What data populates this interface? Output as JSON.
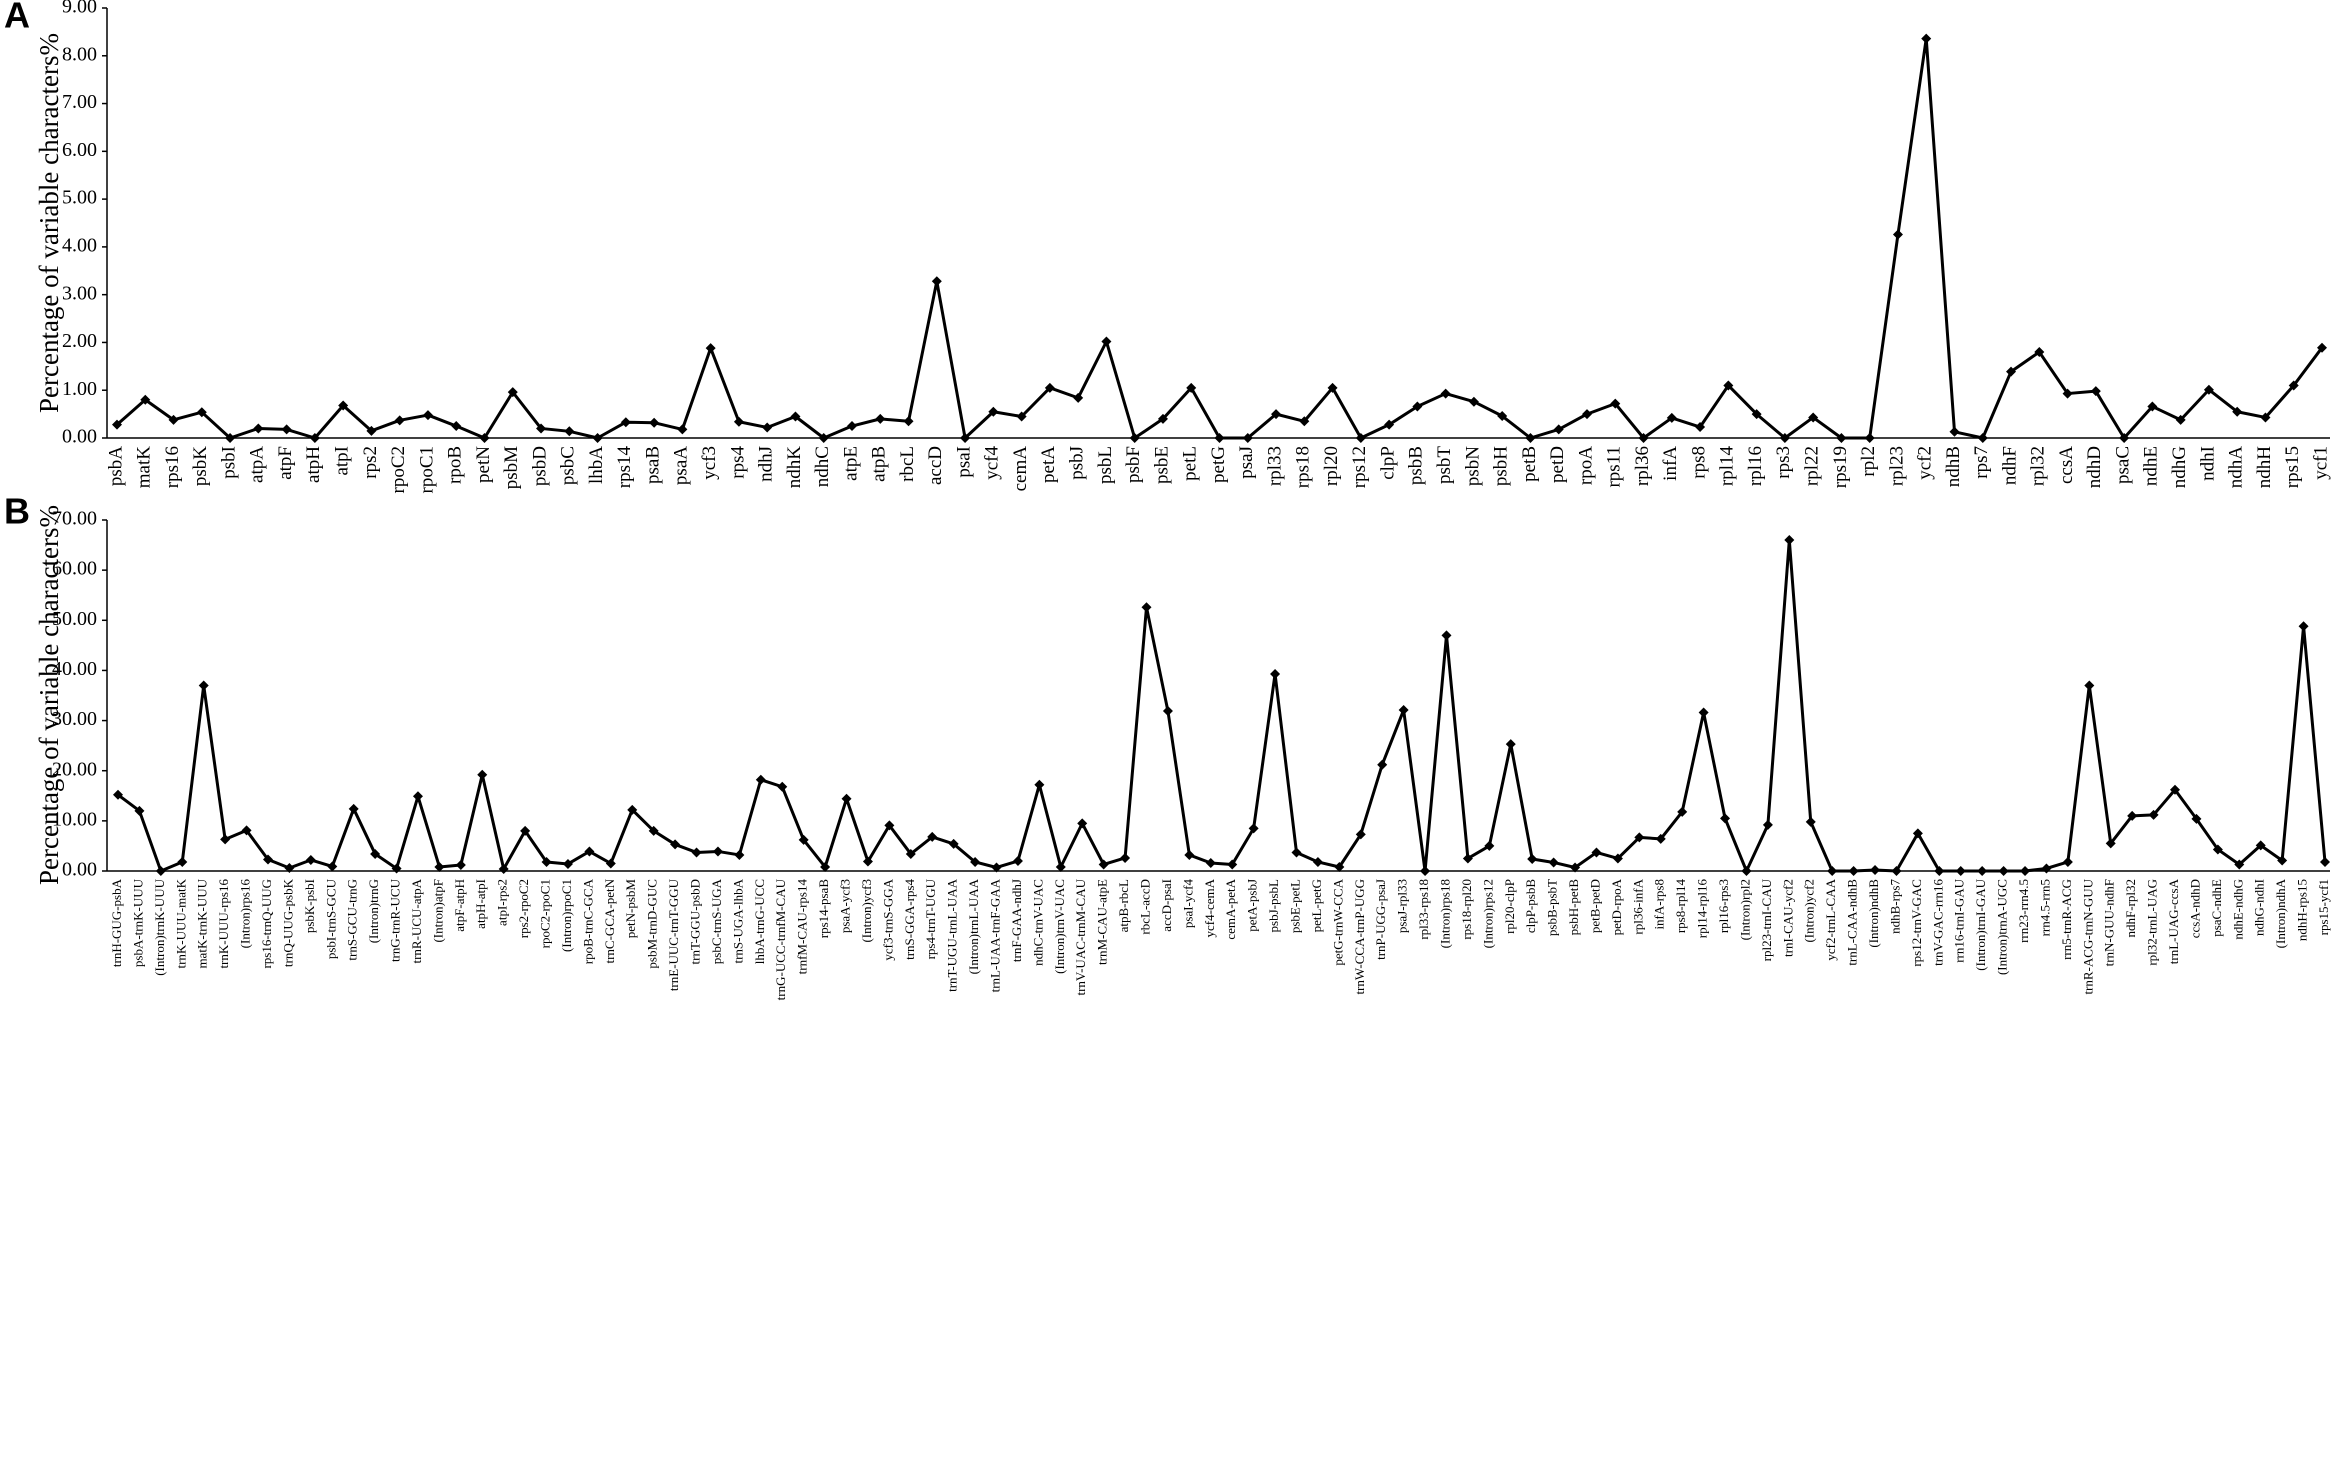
{
  "chart_data": [
    {
      "type": "line",
      "title": "A",
      "y_label": "Percentage of  variable characters%",
      "color": "#000000",
      "categories": [
        "psbA",
        "matK",
        "rps16",
        "psbK",
        "psbI",
        "atpA",
        "atpF",
        "atpH",
        "atpI",
        "rps2",
        "rpoC2",
        "rpoC1",
        "rpoB",
        "petN",
        "psbM",
        "psbD",
        "psbC",
        "lhbA",
        "rps14",
        "psaB",
        "psaA",
        "ycf3",
        "rps4",
        "ndhJ",
        "ndhK",
        "ndhC",
        "atpE",
        "atpB",
        "rbcL",
        "accD",
        "psaI",
        "ycf4",
        "cemA",
        "petA",
        "psbJ",
        "psbL",
        "psbF",
        "psbE",
        "petL",
        "petG",
        "psaJ",
        "rpl33",
        "rps18",
        "rpl20",
        "rps12",
        "clpP",
        "psbB",
        "psbT",
        "psbN",
        "psbH",
        "petB",
        "petD",
        "rpoA",
        "rps11",
        "rpl36",
        "infA",
        "rps8",
        "rpl14",
        "rpl16",
        "rps3",
        "rpl22",
        "rps19",
        "rpl2",
        "rpl23",
        "ycf2",
        "ndhB",
        "rps7",
        "ndhF",
        "rpl32",
        "ccsA",
        "ndhD",
        "psaC",
        "ndhE",
        "ndhG",
        "ndhI",
        "ndhA",
        "ndhH",
        "rps15",
        "ycf1"
      ],
      "values": [
        0.28,
        0.8,
        0.38,
        0.54,
        0,
        0.2,
        0.18,
        0,
        0.68,
        0.15,
        0.37,
        0.48,
        0.25,
        0,
        0.96,
        0.2,
        0.14,
        0,
        0.33,
        0.32,
        0.18,
        1.88,
        0.34,
        0.22,
        0.45,
        0,
        0.25,
        0.4,
        0.35,
        3.28,
        0,
        0.55,
        0.45,
        1.05,
        0.84,
        2.02,
        0,
        0.4,
        1.05,
        0,
        0,
        0.5,
        0.35,
        1.05,
        0,
        0.28,
        0.66,
        0.93,
        0.76,
        0.46,
        0,
        0.18,
        0.5,
        0.72,
        0,
        0.42,
        0.23,
        1.1,
        0.5,
        0,
        0.43,
        0,
        0,
        4.26,
        8.36,
        0.13,
        0,
        1.39,
        1.8,
        0.93,
        0.98,
        0,
        0.66,
        0.38,
        1.01,
        0.55,
        0.43,
        1.1,
        1.89
      ],
      "ylim": [
        0,
        9
      ],
      "yticks": [
        {
          "value": 0,
          "label": "0.00"
        },
        {
          "value": 1,
          "label": "1.00"
        },
        {
          "value": 2,
          "label": "2.00"
        },
        {
          "value": 3,
          "label": "3.00"
        },
        {
          "value": 4,
          "label": "4.00"
        },
        {
          "value": 5,
          "label": "5.00"
        },
        {
          "value": 6,
          "label": "6.00"
        },
        {
          "value": 7,
          "label": "7.00"
        },
        {
          "value": 8,
          "label": "8.00"
        },
        {
          "value": 9,
          "label": "9.00"
        }
      ]
    },
    {
      "type": "line",
      "title": "B",
      "y_label": "Percentage of  variable characters%",
      "color": "#000000",
      "categories": [
        "trnH-GUG-psbA",
        "psbA-trnK-UUU",
        "(Intron)trnK-UUU",
        "trnK-UUU-matK",
        "matK-trnK-UUU",
        "trnK-UUU-rps16",
        "(Intron)rps16",
        "rps16-trnQ-UUG",
        "trnQ-UUG-psbK",
        "psbK-psbI",
        "psbI-trnS-GCU",
        "trnS-GCU-trnG",
        "(Intron)trnG",
        "trnG-trnR-UCU",
        "trnR-UCU-atpA",
        "(Intron)atpF",
        "atpF-atpH",
        "atpH-atpI",
        "atpI-rps2",
        "rps2-rpoC2",
        "rpoC2-rpoC1",
        "(Intron)rpoC1",
        "rpoB-trnC-GCA",
        "trnC-GCA-petN",
        "petN-psbM",
        "psbM-trnD-GUC",
        "trnE-UUC-trnT-GGU",
        "trnT-GGU-psbD",
        "psbC-trnS-UGA",
        "trnS-UGA-lhbA",
        "lhbA-trnG-UCC",
        "trnG-UCC-trnfM-CAU",
        "trnfM-CAU-rps14",
        "rps14-psaB",
        "psaA-ycf3",
        "(Intron)ycf3",
        "ycf3-trnS-GGA",
        "trnS-GGA-rps4",
        "rps4-trnT-UGU",
        "trnT-UGU-trnL-UAA",
        "(Intron)trnL-UAA",
        "trnL-UAA-trnF-GAA",
        "trnF-GAA-ndhJ",
        "ndhC-trnV-UAC",
        "(Intron)trnV-UAC",
        "trnV-UAC-trnM-CAU",
        "trnM-CAU-atpE",
        "atpB-rbcL",
        "rbcL-accD",
        "accD-psaI",
        "psaI-ycf4",
        "ycf4-cemA",
        "cemA-petA",
        "petA-psbJ",
        "psbJ-psbL",
        "psbE-petL",
        "petL-petG",
        "petG-trnW-CCA",
        "trnW-CCA-trnP-UGG",
        "trnP-UGG-psaJ",
        "psaJ-rpl33",
        "rpl33-rps18",
        "(Intron)rps18",
        "rps18-rpl20",
        "(Intron)rps12",
        "rpl20-clpP",
        "clpP-psbB",
        "psbB-psbT",
        "psbH-petB",
        "petB-petD",
        "petD-rpoA",
        "rpl36-infA",
        "infA-rps8",
        "rps8-rpl14",
        "rpl14-rpl16",
        "rpl16-rps3",
        "(Intron)rpl2",
        "rpl23-trnI-CAU",
        "trnI-CAU-ycf2",
        "(Intron)ycf2",
        "ycf2-trnL-CAA",
        "trnL-CAA-ndhB",
        "(Intron)ndhB",
        "ndhB-rps7",
        "rps12-trnV-GAC",
        "trnV-GAC-rrn16",
        "rrn16-trnI-GAU",
        "(Intron)trnI-GAU",
        "(Intron)trnA-UGC",
        "rrn23-rrn4.5",
        "rrn4.5-rrn5",
        "rrn5-trnR-ACG",
        "trnR-ACG-trnN-GUU",
        "trnN-GUU-ndhF",
        "ndhF-rpl32",
        "rpl32-trnL-UAG",
        "trnL-UAG-ccsA",
        "ccsA-ndhD",
        "psaC-ndhE",
        "ndhE-ndhG",
        "ndhG-ndhI",
        "(Intron)ndhA",
        "ndhH-rps15",
        "rps15-ycf1"
      ],
      "values": [
        15.2,
        12.0,
        0,
        1.8,
        37.0,
        6.3,
        8.1,
        2.3,
        0.6,
        2.2,
        0.9,
        12.4,
        3.4,
        0.5,
        14.9,
        0.8,
        1.2,
        19.2,
        0.4,
        8.0,
        1.8,
        1.4,
        3.9,
        1.5,
        12.2,
        8.0,
        5.3,
        3.7,
        3.9,
        3.2,
        18.2,
        16.8,
        6.2,
        0.8,
        14.4,
        1.9,
        9.1,
        3.4,
        6.8,
        5.4,
        1.8,
        0.7,
        2.0,
        17.2,
        0.8,
        9.5,
        1.3,
        2.6,
        52.6,
        31.9,
        3.2,
        1.6,
        1.3,
        8.5,
        39.3,
        3.7,
        1.8,
        0.8,
        7.3,
        21.2,
        32.1,
        0,
        47.0,
        2.5,
        5.0,
        25.3,
        2.4,
        1.7,
        0.7,
        3.7,
        2.5,
        6.7,
        6.4,
        11.8,
        31.6,
        10.5,
        0,
        9.2,
        66.0,
        9.8,
        0,
        0,
        0.2,
        0,
        7.5,
        0,
        0,
        0,
        0,
        0,
        0.5,
        1.8,
        37.0,
        5.5,
        11.0,
        11.2,
        16.2,
        10.4,
        4.3,
        1.3,
        5.1,
        2.1,
        48.8,
        1.8
      ],
      "ylim": [
        0,
        70
      ],
      "yticks": [
        {
          "value": 0,
          "label": "0.00"
        },
        {
          "value": 10,
          "label": "10.00"
        },
        {
          "value": 20,
          "label": "20.00"
        },
        {
          "value": 30,
          "label": "30.00"
        },
        {
          "value": 40,
          "label": "40.00"
        },
        {
          "value": 50,
          "label": "50.00"
        },
        {
          "value": 60,
          "label": "60.00"
        },
        {
          "value": 70,
          "label": "70.00"
        }
      ]
    }
  ]
}
